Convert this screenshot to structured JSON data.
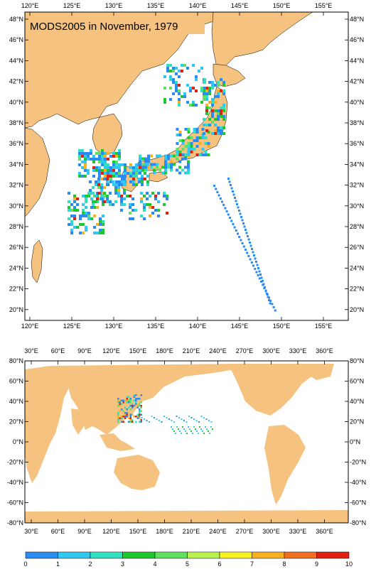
{
  "title": "MODS2005 in November, 1979",
  "colors": {
    "land": "#f5c27f",
    "ocean": "#ffffff",
    "frame": "#000000"
  },
  "top_map": {
    "lon_labels": [
      "120°E",
      "125°E",
      "130°E",
      "135°E",
      "140°E",
      "145°E",
      "150°E",
      "155°E"
    ],
    "lat_labels": [
      "48°N",
      "46°N",
      "44°N",
      "42°N",
      "40°N",
      "38°N",
      "36°N",
      "34°N",
      "32°N",
      "30°N",
      "28°N",
      "26°N",
      "24°N",
      "22°N",
      "20°N"
    ]
  },
  "bottom_map": {
    "lon_labels": [
      "30°E",
      "60°E",
      "90°E",
      "120°E",
      "150°E",
      "180°E",
      "210°E",
      "240°E",
      "270°E",
      "300°E",
      "330°E",
      "360°E"
    ],
    "lat_labels": [
      "80°N",
      "60°N",
      "40°N",
      "20°N",
      "0°N",
      "-20°N",
      "-40°N",
      "-60°N",
      "-80°N"
    ]
  },
  "colorbar": {
    "labels": [
      "0",
      "1",
      "2",
      "3",
      "4",
      "5",
      "6",
      "7",
      "8",
      "9",
      "10"
    ],
    "colors": [
      "#1f4fd8",
      "#2a8cf0",
      "#30c8f0",
      "#30e0c0",
      "#20c830",
      "#60e060",
      "#b8f050",
      "#f8f020",
      "#f8b020",
      "#f07020",
      "#e02010"
    ]
  }
}
